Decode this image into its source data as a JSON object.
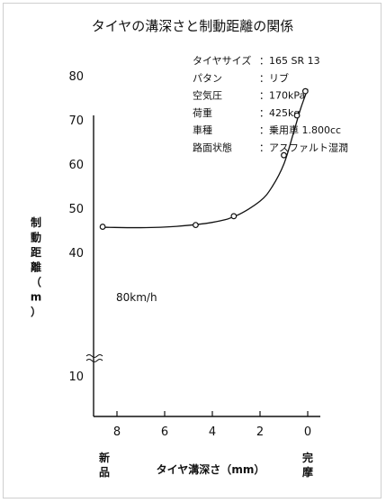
{
  "chart_data": {
    "type": "scatter",
    "title": "タイヤの溝深さと制動距離の関係",
    "specs": [
      {
        "key": "タイヤサイズ",
        "value": "：165 SR 13"
      },
      {
        "key": "パタン",
        "value": "：リブ"
      },
      {
        "key": "空気圧",
        "value": "：170kPa"
      },
      {
        "key": "荷重",
        "value": "：425kg"
      },
      {
        "key": "車種",
        "value": "：乗用車 1.800cc"
      },
      {
        "key": "路面状態",
        "value": "：アスファルト湿潤"
      }
    ],
    "xlabel": "タイヤ溝深さ（mm）",
    "ylabel": "制動距離（m）",
    "xlim": [
      9,
      0
    ],
    "ylim": [
      35,
      85
    ],
    "x_ticks": [
      "8",
      "6",
      "4",
      "2",
      "0"
    ],
    "y_ticks": [
      "80",
      "70",
      "60",
      "50",
      "40",
      "10"
    ],
    "y_axis_break": true,
    "left_end_label": "新品",
    "right_end_label": "完摩",
    "annotation": "80km/h",
    "points": [
      {
        "x": 8.6,
        "y": 45.8
      },
      {
        "x": 4.7,
        "y": 46.2
      },
      {
        "x": 3.1,
        "y": 48.2
      },
      {
        "x": 1.0,
        "y": 62.0
      },
      {
        "x": 0.45,
        "y": 71.0
      },
      {
        "x": 0.1,
        "y": 76.5
      }
    ],
    "trend_curve": [
      {
        "x": 8.6,
        "y": 45.7
      },
      {
        "x": 7.0,
        "y": 45.6
      },
      {
        "x": 5.5,
        "y": 45.9
      },
      {
        "x": 4.0,
        "y": 46.8
      },
      {
        "x": 3.0,
        "y": 48.3
      },
      {
        "x": 2.0,
        "y": 51.6
      },
      {
        "x": 1.5,
        "y": 54.8
      },
      {
        "x": 1.0,
        "y": 60.0
      },
      {
        "x": 0.6,
        "y": 67.0
      },
      {
        "x": 0.3,
        "y": 72.5
      },
      {
        "x": 0.0,
        "y": 77.0
      }
    ]
  }
}
